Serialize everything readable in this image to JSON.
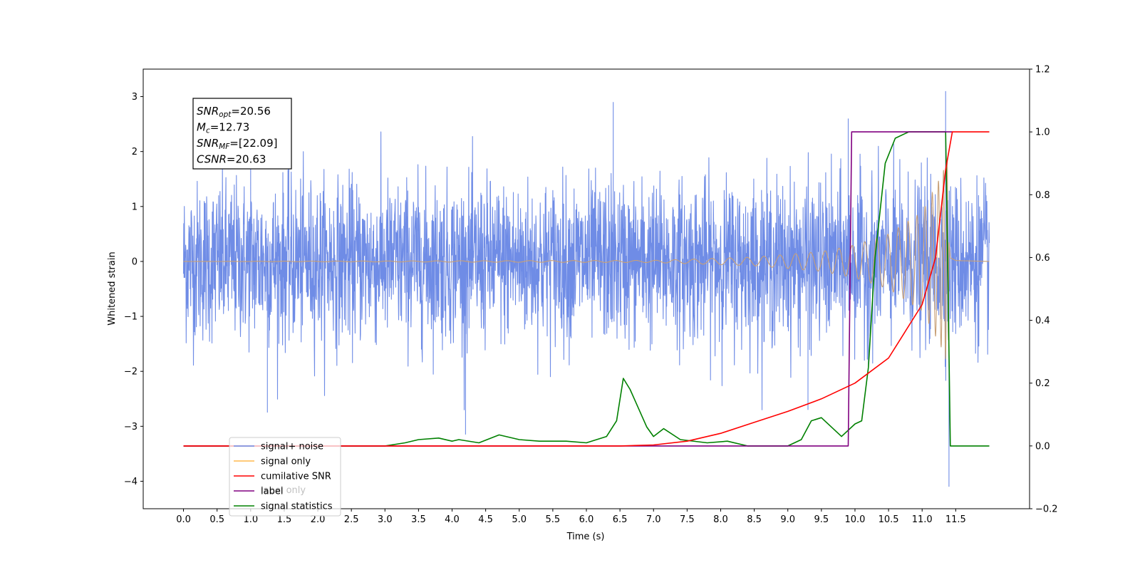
{
  "chart_data": {
    "type": "line",
    "xlabel": "Time (s)",
    "ylabel_left": "Whitened strain",
    "ylabel_right": "",
    "xlim": [
      -0.6,
      12.6
    ],
    "ylim_left": [
      -4.5,
      3.5
    ],
    "ylim_right": [
      -0.2,
      1.2
    ],
    "x_ticks": [
      "0.0",
      "0.5",
      "1.0",
      "1.5",
      "2.0",
      "2.5",
      "3.0",
      "3.5",
      "4.0",
      "4.5",
      "5.0",
      "5.5",
      "6.0",
      "6.5",
      "7.0",
      "7.5",
      "8.0",
      "8.5",
      "9.0",
      "9.5",
      "10.0",
      "10.5",
      "11.0",
      "11.5"
    ],
    "y_ticks_left": [
      "−4",
      "−3",
      "−2",
      "−1",
      "0",
      "1",
      "2",
      "3"
    ],
    "y_ticks_right": [
      "−0.2",
      "0.0",
      "0.2",
      "0.4",
      "0.6",
      "0.8",
      "1.0",
      "1.2"
    ],
    "grid": false,
    "legend_position": "lower-left",
    "colors": {
      "signal_noise": "#6f8ce6",
      "signal_only": "#ffb84d",
      "signal_only_overlap": "#c8a077",
      "cumulative_snr": "#ff0000",
      "label": "#800080",
      "signal_statistics": "#008000"
    },
    "series": [
      {
        "name": "signal+ noise",
        "axis": "left",
        "x_range": [
          0.0,
          12.0
        ],
        "envelope_typical": [
          -1.5,
          1.5
        ],
        "extreme_peaks": [
          [
            1.0,
            2.2
          ],
          [
            1.25,
            -2.75
          ],
          [
            4.2,
            -3.15
          ],
          [
            6.4,
            2.9
          ],
          [
            11.35,
            3.1
          ],
          [
            11.4,
            -4.1
          ],
          [
            9.3,
            -2.7
          ],
          [
            9.9,
            2.6
          ]
        ]
      },
      {
        "name": "signal only",
        "axis": "left",
        "x_range": [
          0.0,
          12.0
        ],
        "envelope": [
          [
            0.0,
            0.0
          ],
          [
            7.0,
            0.02
          ],
          [
            8.5,
            0.08
          ],
          [
            9.5,
            0.18
          ],
          [
            10.0,
            0.3
          ],
          [
            10.5,
            0.5
          ],
          [
            11.0,
            0.9
          ],
          [
            11.3,
            1.6
          ],
          [
            11.38,
            1.9
          ],
          [
            11.42,
            0.2
          ],
          [
            11.5,
            0.05
          ],
          [
            12.0,
            0.0
          ]
        ]
      },
      {
        "name": "cumilative SNR",
        "axis": "right",
        "x": [
          0.0,
          5.0,
          6.5,
          7.0,
          7.5,
          8.0,
          8.5,
          9.0,
          9.5,
          10.0,
          10.5,
          11.0,
          11.2,
          11.35,
          11.45,
          12.0
        ],
        "values": [
          0.0,
          0.0,
          0.0,
          0.003,
          0.015,
          0.04,
          0.075,
          0.11,
          0.15,
          0.2,
          0.28,
          0.45,
          0.6,
          0.88,
          1.0,
          1.0
        ]
      },
      {
        "name": "label",
        "axis": "right",
        "x": [
          0.0,
          9.9,
          9.95,
          11.45,
          11.46
        ],
        "values": [
          0.0,
          0.0,
          1.0,
          1.0,
          null
        ]
      },
      {
        "name": "signal statistics",
        "axis": "right",
        "x": [
          0.0,
          2.0,
          3.0,
          3.3,
          3.5,
          3.8,
          4.0,
          4.1,
          4.4,
          4.7,
          5.0,
          5.3,
          5.7,
          6.0,
          6.3,
          6.45,
          6.55,
          6.65,
          6.9,
          7.0,
          7.15,
          7.4,
          7.8,
          8.1,
          8.4,
          9.0,
          9.2,
          9.35,
          9.5,
          9.8,
          10.0,
          10.1,
          10.2,
          10.3,
          10.45,
          10.6,
          10.8,
          11.35,
          11.38,
          11.42,
          12.0
        ],
        "values": [
          0.0,
          0.0,
          0.0,
          0.01,
          0.02,
          0.025,
          0.015,
          0.02,
          0.01,
          0.035,
          0.02,
          0.015,
          0.015,
          0.01,
          0.03,
          0.08,
          0.215,
          0.18,
          0.06,
          0.03,
          0.055,
          0.02,
          0.01,
          0.015,
          0.0,
          0.0,
          0.02,
          0.08,
          0.09,
          0.03,
          0.07,
          0.08,
          0.25,
          0.6,
          0.9,
          0.98,
          1.0,
          1.0,
          0.6,
          0.0,
          0.0
        ]
      }
    ],
    "legend": [
      {
        "label": "signal+ noise",
        "color": "#6f8ce6"
      },
      {
        "label": "signal only",
        "color": "#ffb84d"
      },
      {
        "label": "cumilative SNR",
        "color": "#ff0000"
      },
      {
        "label": "label",
        "color": "#800080"
      },
      {
        "label": "signal statistics",
        "color": "#008000"
      }
    ],
    "annotation": {
      "lines": [
        {
          "sym": "SNR",
          "sub": "opt",
          "value": "=20.56"
        },
        {
          "sym": "M",
          "sub": "c",
          "value": "=12.73"
        },
        {
          "sym": "SNR",
          "sub": "MF",
          "value": "=[22.09]"
        },
        {
          "sym": "CSNR",
          "sub": "",
          "value": "=20.63"
        }
      ]
    },
    "ghost_legend_text": "label only"
  }
}
